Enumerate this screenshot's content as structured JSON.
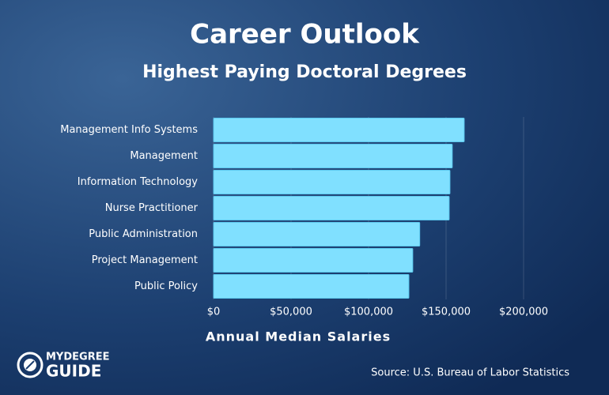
{
  "chart_data": {
    "type": "hbar",
    "title": "Career Outlook",
    "subtitle": "Highest Paying Doctoral Degrees",
    "xlabel": "Annual Median Salaries",
    "source": "Source: U.S. Bureau of Labor Statistics",
    "logo": [
      "MYDEGREE",
      "GUIDE"
    ],
    "categories": [
      "Management Info Systems",
      "Management",
      "Information Technology",
      "Nurse Practitioner",
      "Public Administration",
      "Project Management",
      "Public Policy"
    ],
    "values": [
      161700,
      154000,
      152500,
      152000,
      133000,
      128500,
      126000
    ],
    "color": "#80e0ff",
    "xlim": [
      0,
      200000
    ],
    "xticks": [
      {
        "value": 0,
        "label": "$0"
      },
      {
        "value": 50000,
        "label": "$50,000"
      },
      {
        "value": 100000,
        "label": "$100,000"
      },
      {
        "value": 150000,
        "label": "$150,000"
      },
      {
        "value": 200000,
        "label": "$200,000"
      }
    ],
    "grid": true
  }
}
